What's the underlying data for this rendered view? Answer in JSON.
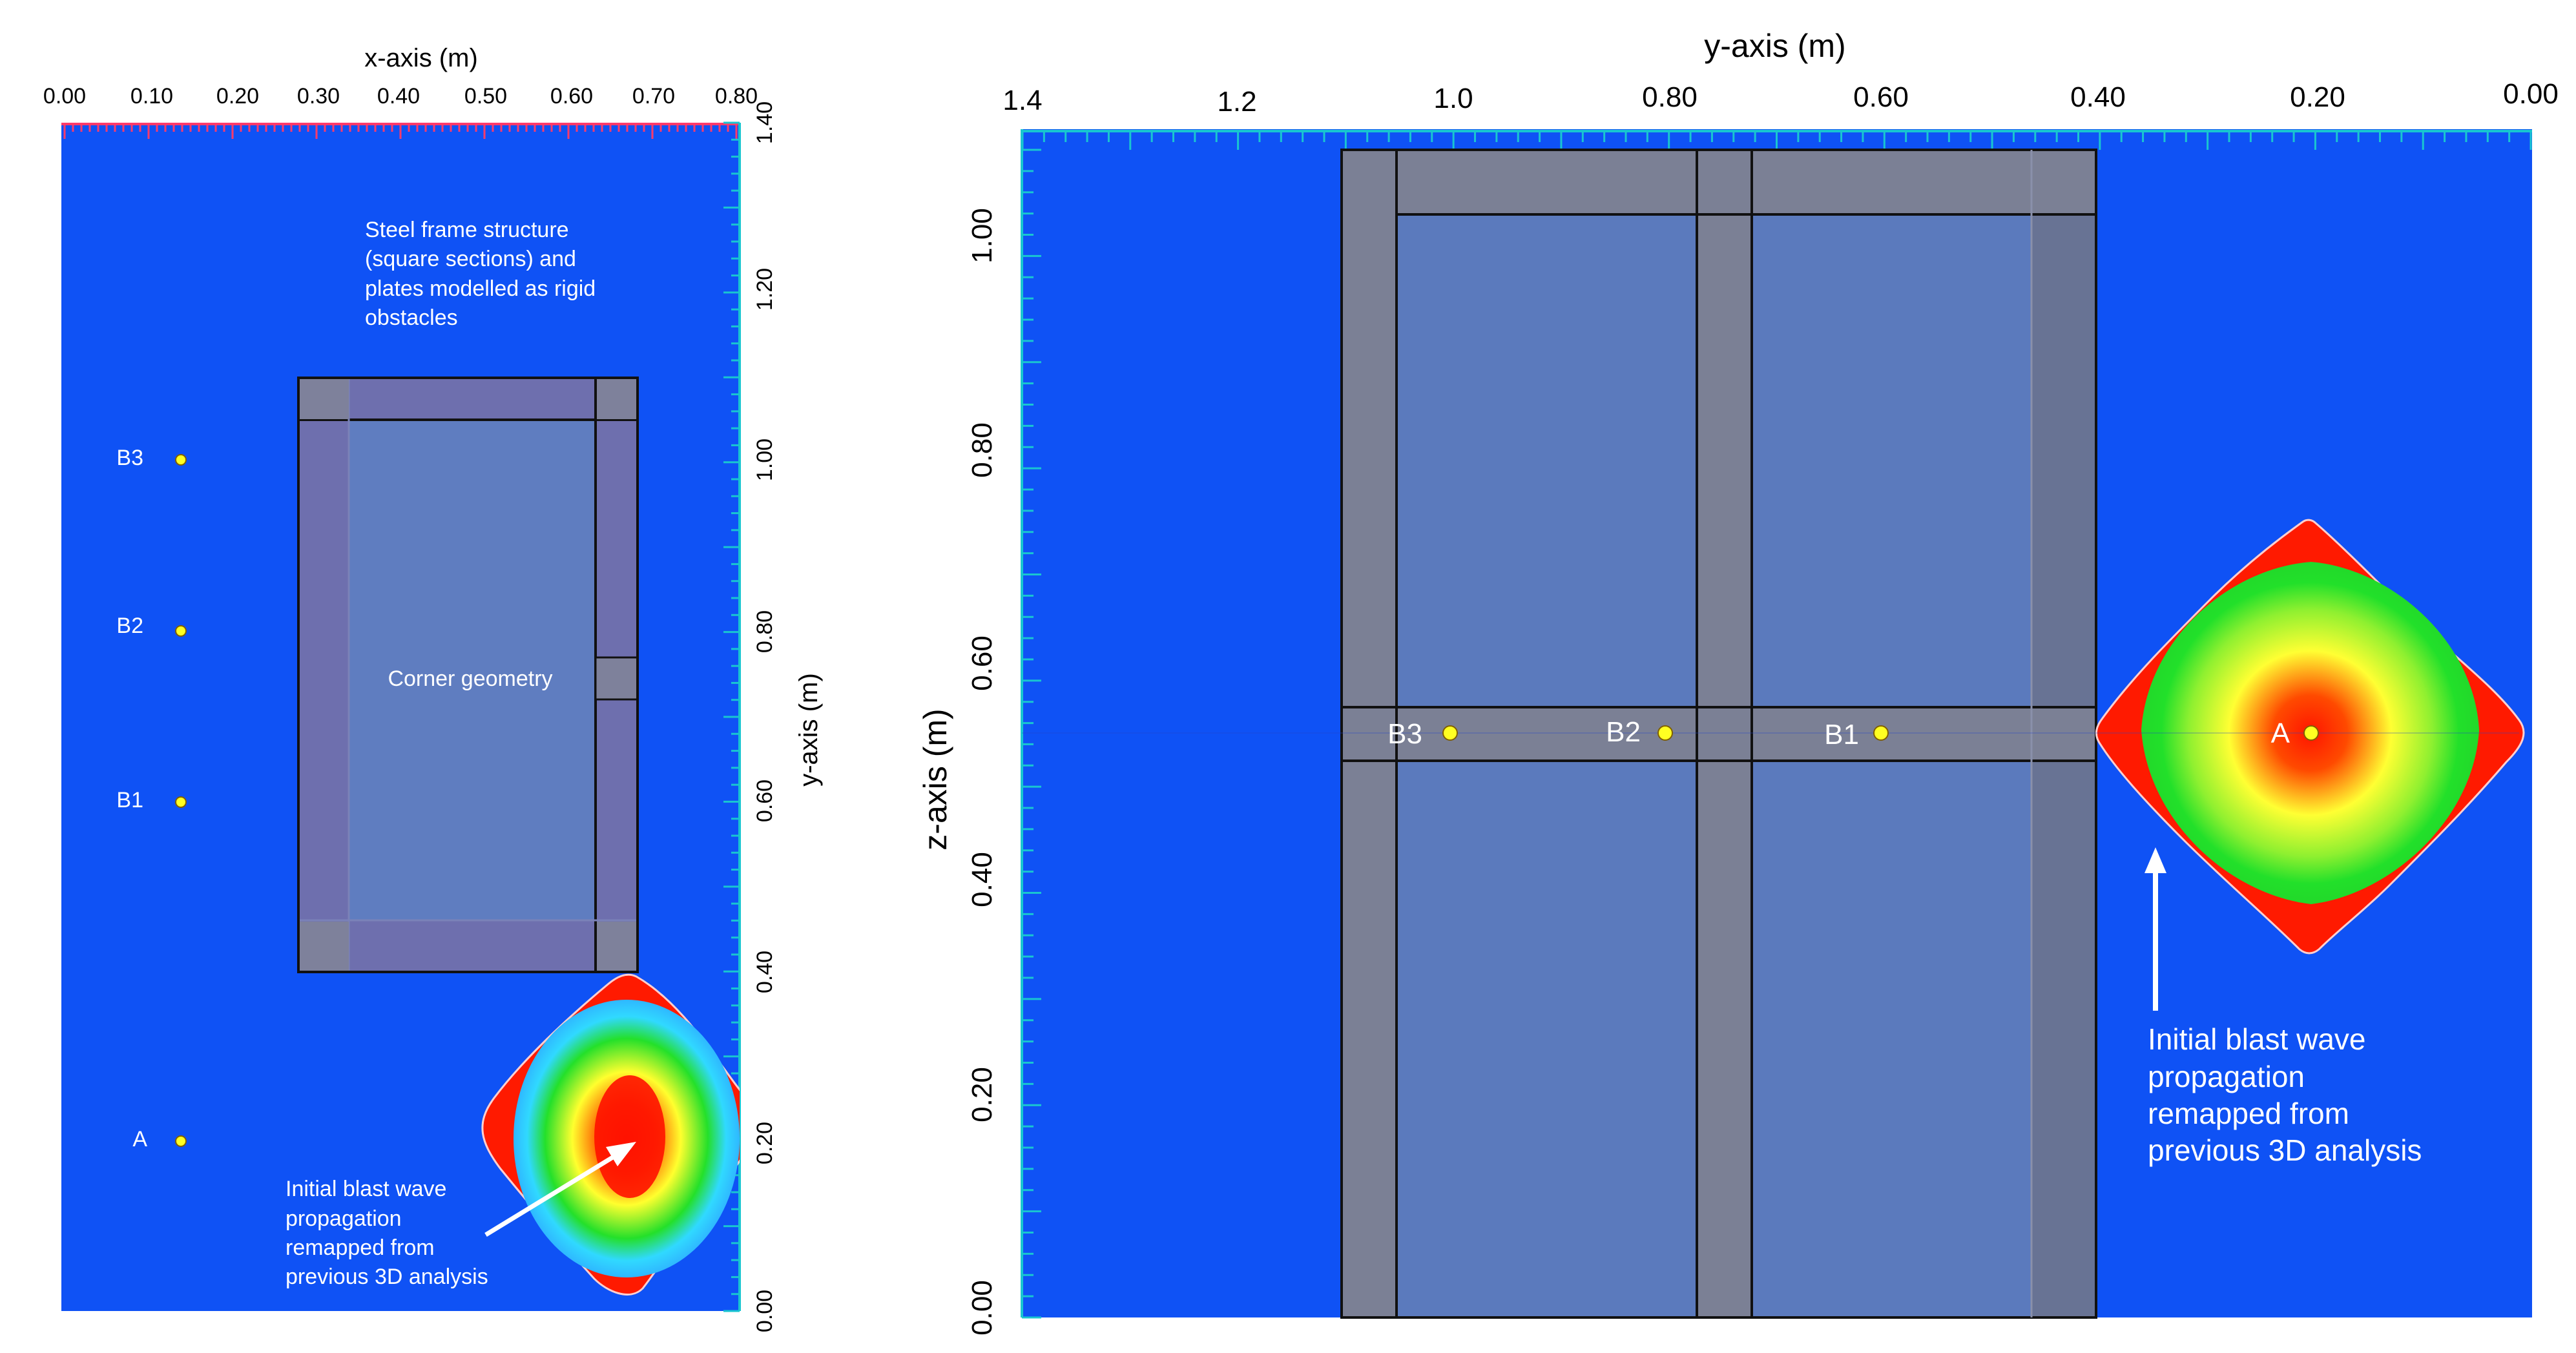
{
  "left_panel": {
    "x_axis_title": "x-axis (m)",
    "x_ticks": [
      "0.00",
      "0.10",
      "0.20",
      "0.30",
      "0.40",
      "0.50",
      "0.60",
      "0.70",
      "0.80"
    ],
    "y_axis_title": "y-axis (m)",
    "y_ticks": [
      "0.00",
      "0.20",
      "0.40",
      "0.60",
      "0.80",
      "1.00",
      "1.20",
      "1.40"
    ],
    "annotation_structure": [
      "Steel frame structure",
      "(square sections) and",
      "plates modelled as rigid",
      "obstacles"
    ],
    "annotation_corner": "Corner geometry",
    "annotation_blast": [
      "Initial blast wave",
      "propagation",
      "remapped from",
      "previous 3D analysis"
    ],
    "gauges": [
      "B3",
      "B2",
      "B1",
      "A"
    ]
  },
  "right_panel": {
    "y_axis_title": "y-axis (m)",
    "y_ticks": [
      "1.4",
      "1.2",
      "1.0",
      "0.80",
      "0.60",
      "0.40",
      "0.20",
      "0.00"
    ],
    "z_axis_title": "z-axis (m)",
    "z_ticks": [
      "0.00",
      "0.20",
      "0.40",
      "0.60",
      "0.80",
      "1.00"
    ],
    "annotation_blast": [
      "Initial blast wave",
      "propagation",
      "remapped from",
      "previous 3D analysis"
    ],
    "gauges": [
      "B3",
      "B2",
      "B1",
      "A"
    ]
  },
  "colors": {
    "domain_blue": "#0f52f5",
    "frame_gray": "#7b7f94",
    "plate_blue": "#5c7ab8",
    "axis_ticks_left_top": "#ff3b6b",
    "axis_ticks_cyan": "#19c6d0",
    "gauge_yellow": "#ffff22",
    "blast_red": "#ff1a00",
    "blast_yellow": "#ffff33",
    "blast_green": "#22e02a"
  }
}
